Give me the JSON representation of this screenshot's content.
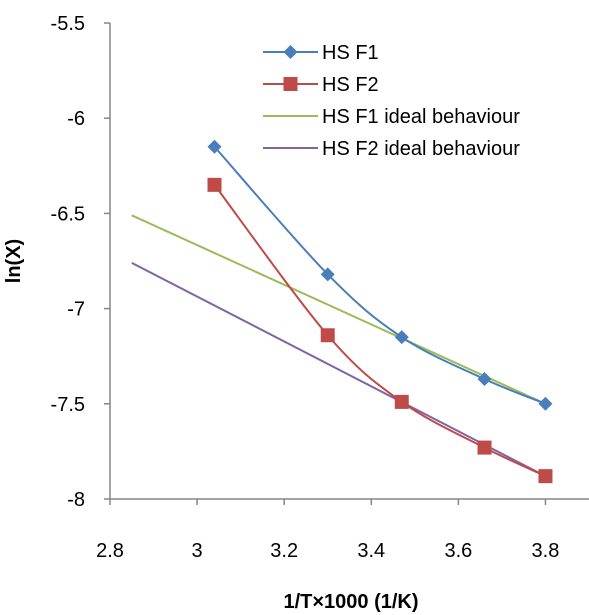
{
  "chart_data": {
    "type": "line",
    "title": "",
    "xlabel": "1/T×1000 (1/K)",
    "ylabel": "ln(X)",
    "xlim": [
      2.8,
      3.9
    ],
    "ylim": [
      -8,
      -5.5
    ],
    "xticks": [
      2.8,
      3,
      3.2,
      3.4,
      3.6,
      3.8
    ],
    "xtick_labels": [
      "2.8",
      "3",
      "3.2",
      "3.4",
      "3.6",
      "3.8"
    ],
    "yticks": [
      -5.5,
      -6,
      -6.5,
      -7,
      -7.5,
      -8
    ],
    "ytick_labels": [
      "-5.5",
      "-6",
      "-6.5",
      "-7",
      "-7.5",
      "-8"
    ],
    "grid": false,
    "legend_position": "top-right",
    "series": [
      {
        "name": "HS F1",
        "color": "#4a7ebb",
        "marker": "diamond",
        "x": [
          3.04,
          3.3,
          3.47,
          3.66,
          3.8
        ],
        "y": [
          -6.15,
          -6.82,
          -7.15,
          -7.37,
          -7.5
        ]
      },
      {
        "name": "HS F2",
        "color": "#be4b48",
        "marker": "square",
        "x": [
          3.04,
          3.3,
          3.47,
          3.66,
          3.8
        ],
        "y": [
          -6.35,
          -7.14,
          -7.49,
          -7.73,
          -7.88
        ]
      },
      {
        "name": "HS F1 ideal behaviour",
        "color": "#9bbb59",
        "marker": "none",
        "x": [
          2.85,
          3.8
        ],
        "y": [
          -6.51,
          -7.5
        ]
      },
      {
        "name": "HS F2 ideal behaviour",
        "color": "#8064a2",
        "marker": "none",
        "x": [
          2.85,
          3.8
        ],
        "y": [
          -6.76,
          -7.88
        ]
      }
    ]
  }
}
